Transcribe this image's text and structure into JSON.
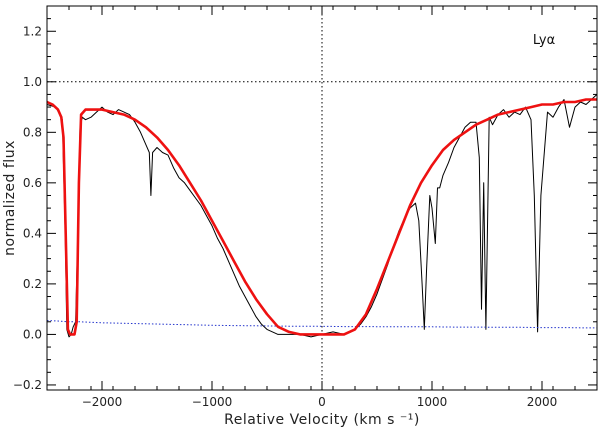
{
  "chart_data": {
    "type": "line",
    "title": "",
    "annotation": "Lyα",
    "xlabel": "Relative Velocity (km s ⁻¹)",
    "ylabel": "normalized flux",
    "xlim": [
      -2500,
      2500
    ],
    "ylim": [
      -0.22,
      1.3
    ],
    "x_ticks": [
      -2000,
      -1000,
      0,
      1000,
      2000
    ],
    "x_tick_labels": [
      "−2000",
      "−1000",
      "0",
      "1000",
      "2000"
    ],
    "y_ticks": [
      -0.2,
      0.0,
      0.2,
      0.4,
      0.6,
      0.8,
      1.0,
      1.2
    ],
    "y_tick_labels": [
      "−0.2",
      "0.0",
      "0.2",
      "0.4",
      "0.6",
      "0.8",
      "1.0",
      "1.2"
    ],
    "grid": false,
    "reference_lines": {
      "horizontal": 1.0,
      "vertical": 0
    },
    "colors": {
      "data": "#000000",
      "model": "#ee1111",
      "error": "#2233cc",
      "reference": "#000000"
    },
    "series": [
      {
        "role": "observed-spectrum",
        "x": [
          -2500,
          -2420,
          -2360,
          -2335,
          -2320,
          -2300,
          -2280,
          -2262,
          -2240,
          -2220,
          -2200,
          -2180,
          -2150,
          -2100,
          -2050,
          -2000,
          -1950,
          -1900,
          -1850,
          -1800,
          -1750,
          -1700,
          -1650,
          -1600,
          -1570,
          -1555,
          -1540,
          -1500,
          -1450,
          -1400,
          -1350,
          -1300,
          -1250,
          -1200,
          -1150,
          -1100,
          -1050,
          -1000,
          -950,
          -900,
          -850,
          -800,
          -750,
          -700,
          -650,
          -600,
          -550,
          -500,
          -450,
          -400,
          -350,
          -300,
          -250,
          -200,
          -100,
          0,
          100,
          200,
          300,
          350,
          400,
          450,
          500,
          550,
          600,
          650,
          700,
          750,
          800,
          850,
          880,
          910,
          930,
          950,
          980,
          1000,
          1030,
          1050,
          1070,
          1100,
          1150,
          1200,
          1250,
          1300,
          1350,
          1400,
          1430,
          1450,
          1470,
          1490,
          1520,
          1550,
          1600,
          1650,
          1700,
          1750,
          1800,
          1850,
          1900,
          1930,
          1960,
          1990,
          2050,
          2100,
          2150,
          2200,
          2250,
          2300,
          2350,
          2400,
          2450,
          2500
        ],
        "y": [
          0.91,
          0.9,
          0.85,
          0.4,
          0.02,
          -0.01,
          0.0,
          0.03,
          0.05,
          0.4,
          0.82,
          0.86,
          0.85,
          0.86,
          0.88,
          0.9,
          0.88,
          0.87,
          0.89,
          0.88,
          0.87,
          0.84,
          0.8,
          0.75,
          0.72,
          0.55,
          0.72,
          0.74,
          0.72,
          0.71,
          0.66,
          0.62,
          0.6,
          0.57,
          0.54,
          0.51,
          0.47,
          0.43,
          0.38,
          0.34,
          0.29,
          0.24,
          0.19,
          0.15,
          0.11,
          0.07,
          0.04,
          0.02,
          0.01,
          0.0,
          0.0,
          0.0,
          0.0,
          0.0,
          -0.01,
          0.0,
          0.01,
          0.0,
          0.02,
          0.04,
          0.07,
          0.11,
          0.16,
          0.22,
          0.28,
          0.35,
          0.41,
          0.46,
          0.5,
          0.52,
          0.45,
          0.2,
          0.02,
          0.25,
          0.55,
          0.5,
          0.36,
          0.58,
          0.58,
          0.63,
          0.68,
          0.74,
          0.78,
          0.82,
          0.84,
          0.84,
          0.7,
          0.1,
          0.6,
          0.02,
          0.86,
          0.83,
          0.87,
          0.89,
          0.86,
          0.88,
          0.87,
          0.9,
          0.85,
          0.55,
          0.01,
          0.55,
          0.88,
          0.86,
          0.9,
          0.93,
          0.82,
          0.9,
          0.92,
          0.91,
          0.93,
          0.95
        ]
      },
      {
        "role": "model-fit",
        "x": [
          -2500,
          -2450,
          -2400,
          -2370,
          -2350,
          -2330,
          -2310,
          -2290,
          -2270,
          -2250,
          -2230,
          -2210,
          -2190,
          -2150,
          -2100,
          -2000,
          -1900,
          -1800,
          -1700,
          -1600,
          -1500,
          -1400,
          -1300,
          -1200,
          -1100,
          -1000,
          -900,
          -800,
          -700,
          -600,
          -500,
          -400,
          -300,
          -200,
          -100,
          0,
          100,
          200,
          300,
          400,
          500,
          600,
          700,
          800,
          900,
          1000,
          1100,
          1200,
          1300,
          1400,
          1500,
          1600,
          1700,
          1800,
          1900,
          2000,
          2100,
          2200,
          2300,
          2400,
          2500
        ],
        "y": [
          0.92,
          0.91,
          0.89,
          0.86,
          0.78,
          0.4,
          0.02,
          0.0,
          0.0,
          0.0,
          0.05,
          0.6,
          0.87,
          0.89,
          0.89,
          0.89,
          0.88,
          0.87,
          0.85,
          0.82,
          0.78,
          0.73,
          0.67,
          0.6,
          0.53,
          0.45,
          0.37,
          0.29,
          0.21,
          0.14,
          0.08,
          0.03,
          0.01,
          0.0,
          0.0,
          0.0,
          0.0,
          0.0,
          0.02,
          0.08,
          0.18,
          0.29,
          0.4,
          0.51,
          0.6,
          0.67,
          0.73,
          0.77,
          0.8,
          0.83,
          0.85,
          0.87,
          0.88,
          0.89,
          0.9,
          0.91,
          0.91,
          0.92,
          0.92,
          0.93,
          0.93
        ]
      },
      {
        "role": "error-spectrum",
        "x": [
          -2500,
          -2400,
          -2300,
          -2200,
          -2100,
          -2000,
          -1800,
          -1600,
          -1400,
          -1200,
          -1000,
          -800,
          -600,
          -400,
          -200,
          0,
          200,
          400,
          600,
          800,
          1000,
          1200,
          1400,
          1600,
          1800,
          2000,
          2200,
          2400,
          2500
        ],
        "y": [
          0.055,
          0.053,
          0.05,
          0.05,
          0.048,
          0.046,
          0.044,
          0.042,
          0.04,
          0.038,
          0.036,
          0.035,
          0.034,
          0.033,
          0.032,
          0.032,
          0.031,
          0.031,
          0.03,
          0.03,
          0.03,
          0.029,
          0.029,
          0.028,
          0.028,
          0.027,
          0.027,
          0.026,
          0.026
        ]
      }
    ]
  }
}
